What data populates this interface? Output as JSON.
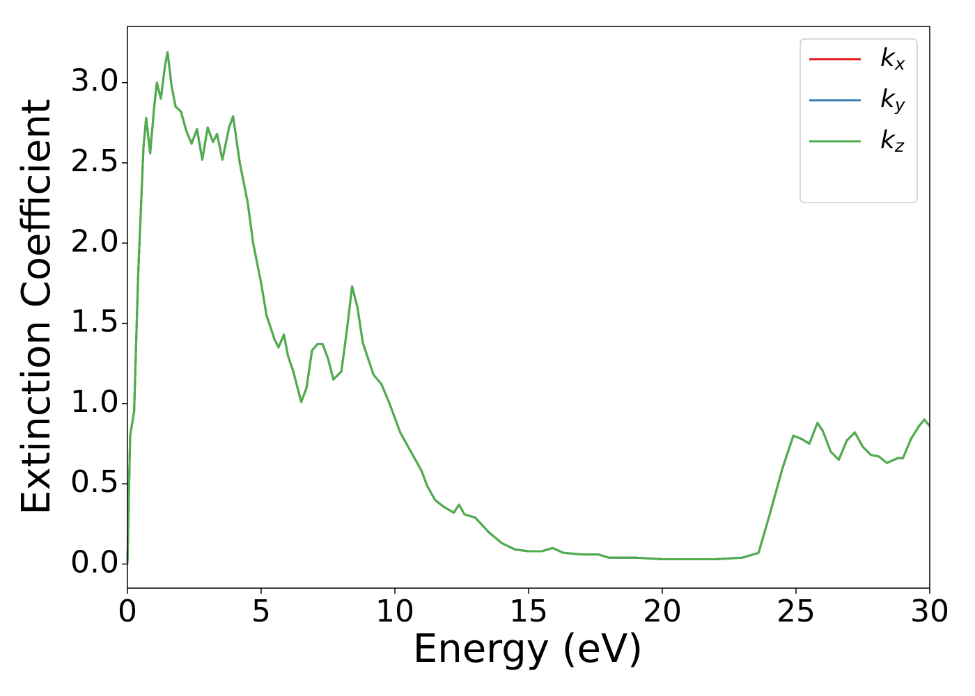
{
  "chart_data": {
    "type": "line",
    "xlabel": "Energy (eV)",
    "ylabel": "Extinction Coefficient",
    "x": [
      0,
      0.1,
      0.25,
      0.4,
      0.6,
      0.7,
      0.85,
      1.0,
      1.1,
      1.25,
      1.4,
      1.5,
      1.65,
      1.8,
      2.0,
      2.2,
      2.4,
      2.6,
      2.8,
      3.0,
      3.2,
      3.35,
      3.55,
      3.8,
      3.95,
      4.2,
      4.5,
      4.7,
      5.0,
      5.2,
      5.5,
      5.65,
      5.85,
      6.0,
      6.2,
      6.5,
      6.7,
      6.9,
      7.1,
      7.3,
      7.5,
      7.7,
      8.0,
      8.2,
      8.4,
      8.6,
      8.8,
      9.0,
      9.2,
      9.5,
      9.8,
      10.2,
      10.6,
      11.0,
      11.2,
      11.5,
      11.8,
      12.2,
      12.4,
      12.6,
      13.0,
      13.5,
      14.0,
      14.5,
      15.0,
      15.5,
      15.9,
      16.3,
      17.0,
      17.6,
      18.0,
      19.0,
      20.0,
      21.0,
      22.0,
      23.0,
      23.6,
      24.0,
      24.5,
      24.9,
      25.2,
      25.5,
      25.8,
      26.0,
      26.3,
      26.6,
      26.9,
      27.2,
      27.5,
      27.8,
      28.1,
      28.4,
      28.8,
      29.0,
      29.3,
      29.6,
      29.8,
      30
    ],
    "series": [
      {
        "name": "kx",
        "color": "#e41a1c",
        "values": [
          0,
          0.8,
          0.95,
          1.8,
          2.6,
          2.78,
          2.56,
          2.85,
          3.0,
          2.9,
          3.1,
          3.19,
          2.98,
          2.85,
          2.82,
          2.7,
          2.62,
          2.71,
          2.52,
          2.72,
          2.63,
          2.68,
          2.52,
          2.72,
          2.79,
          2.5,
          2.25,
          2.0,
          1.75,
          1.55,
          1.4,
          1.35,
          1.43,
          1.3,
          1.2,
          1.01,
          1.1,
          1.33,
          1.37,
          1.37,
          1.28,
          1.15,
          1.2,
          1.45,
          1.73,
          1.6,
          1.38,
          1.28,
          1.18,
          1.12,
          1.0,
          0.82,
          0.7,
          0.58,
          0.49,
          0.4,
          0.36,
          0.32,
          0.37,
          0.31,
          0.29,
          0.2,
          0.13,
          0.09,
          0.08,
          0.08,
          0.1,
          0.07,
          0.06,
          0.06,
          0.04,
          0.04,
          0.03,
          0.03,
          0.03,
          0.04,
          0.07,
          0.3,
          0.6,
          0.8,
          0.78,
          0.75,
          0.88,
          0.83,
          0.7,
          0.65,
          0.77,
          0.82,
          0.73,
          0.68,
          0.67,
          0.63,
          0.66,
          0.66,
          0.78,
          0.86,
          0.9,
          0.86
        ]
      },
      {
        "name": "ky",
        "color": "#377eb8",
        "values": [
          0,
          0.8,
          0.95,
          1.8,
          2.6,
          2.78,
          2.56,
          2.85,
          3.0,
          2.9,
          3.1,
          3.19,
          2.98,
          2.85,
          2.82,
          2.7,
          2.62,
          2.71,
          2.52,
          2.72,
          2.63,
          2.68,
          2.52,
          2.72,
          2.79,
          2.5,
          2.25,
          2.0,
          1.75,
          1.55,
          1.4,
          1.35,
          1.43,
          1.3,
          1.2,
          1.01,
          1.1,
          1.33,
          1.37,
          1.37,
          1.28,
          1.15,
          1.2,
          1.45,
          1.73,
          1.6,
          1.38,
          1.28,
          1.18,
          1.12,
          1.0,
          0.82,
          0.7,
          0.58,
          0.49,
          0.4,
          0.36,
          0.32,
          0.37,
          0.31,
          0.29,
          0.2,
          0.13,
          0.09,
          0.08,
          0.08,
          0.1,
          0.07,
          0.06,
          0.06,
          0.04,
          0.04,
          0.03,
          0.03,
          0.03,
          0.04,
          0.07,
          0.3,
          0.6,
          0.8,
          0.78,
          0.75,
          0.88,
          0.83,
          0.7,
          0.65,
          0.77,
          0.82,
          0.73,
          0.68,
          0.67,
          0.63,
          0.66,
          0.66,
          0.78,
          0.86,
          0.9,
          0.86
        ]
      },
      {
        "name": "kz",
        "color": "#4daf4a",
        "values": [
          0,
          0.8,
          0.95,
          1.8,
          2.6,
          2.78,
          2.56,
          2.85,
          3.0,
          2.9,
          3.1,
          3.19,
          2.98,
          2.85,
          2.82,
          2.7,
          2.62,
          2.71,
          2.52,
          2.72,
          2.63,
          2.68,
          2.52,
          2.72,
          2.79,
          2.5,
          2.25,
          2.0,
          1.75,
          1.55,
          1.4,
          1.35,
          1.43,
          1.3,
          1.2,
          1.01,
          1.1,
          1.33,
          1.37,
          1.37,
          1.28,
          1.15,
          1.2,
          1.45,
          1.73,
          1.6,
          1.38,
          1.28,
          1.18,
          1.12,
          1.0,
          0.82,
          0.7,
          0.58,
          0.49,
          0.4,
          0.36,
          0.32,
          0.37,
          0.31,
          0.29,
          0.2,
          0.13,
          0.09,
          0.08,
          0.08,
          0.1,
          0.07,
          0.06,
          0.06,
          0.04,
          0.04,
          0.03,
          0.03,
          0.03,
          0.04,
          0.07,
          0.3,
          0.6,
          0.8,
          0.78,
          0.75,
          0.88,
          0.83,
          0.7,
          0.65,
          0.77,
          0.82,
          0.73,
          0.68,
          0.67,
          0.63,
          0.66,
          0.66,
          0.78,
          0.86,
          0.9,
          0.86
        ]
      }
    ],
    "xlim": [
      0,
      30
    ],
    "xticks": [
      0,
      5,
      10,
      15,
      20,
      25,
      30
    ],
    "ylim": [
      -0.15,
      3.35
    ],
    "yticks": [
      {
        "value": 0,
        "label": "0.0"
      },
      0.5,
      {
        "value": 1,
        "label": "1.0"
      },
      1.5,
      {
        "value": 2,
        "label": "2.0"
      },
      2.5,
      {
        "value": 3,
        "label": "3.0"
      }
    ],
    "legend": "upper right",
    "grid": false
  }
}
